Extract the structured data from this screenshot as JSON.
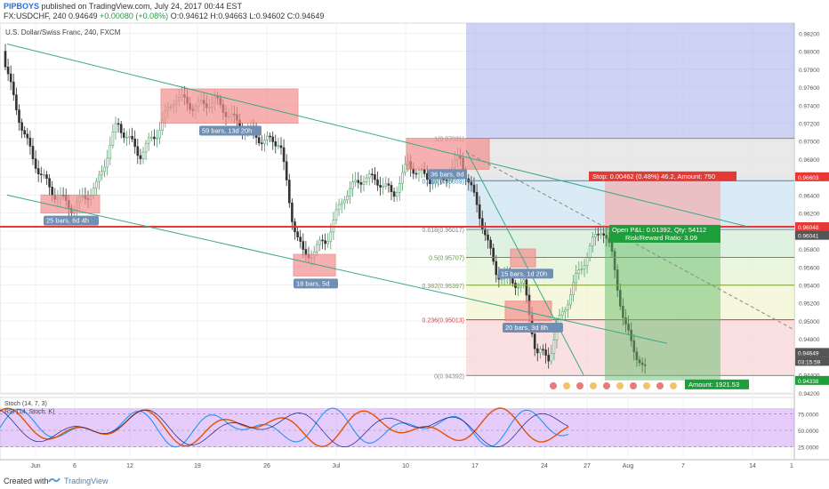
{
  "header": {
    "author": "PIPBOYS",
    "published": "published on TradingView.com, July 24, 2017 00:44 EST",
    "symbol": "FX:USDCHF, 240",
    "last": "0.94649",
    "change": "+0.00080 (+0.08%)",
    "ohlc": "O:0.94612 H:0.94663 L:0.94602 C:0.94649"
  },
  "chart_data": {
    "type": "candlestick",
    "title": "U.S. Dollar/Swiss Franc, 240, FXCM",
    "price_axis": {
      "range": [
        0.942,
        0.983
      ],
      "ticks": [
        "0.98200",
        "0.98000",
        "0.97800",
        "0.97600",
        "0.97400",
        "0.97200",
        "0.97000",
        "0.96800",
        "0.96600",
        "0.96400",
        "0.96200",
        "0.96000",
        "0.95800",
        "0.95600",
        "0.95400",
        "0.95200",
        "0.95000",
        "0.94800",
        "0.94600",
        "0.94400",
        "0.94200"
      ],
      "labels": [
        {
          "text": "0.96603",
          "color": "#e53935"
        },
        {
          "text": "0.96048",
          "color": "#e53935"
        },
        {
          "text": "0.96041",
          "color": "#555555"
        },
        {
          "text": "0.94649",
          "color": "#555555"
        },
        {
          "text": "03:15:59",
          "color": "#555555"
        },
        {
          "text": "0.94338",
          "color": "#1e9e3a"
        }
      ]
    },
    "time_axis": [
      "Jun",
      "6",
      "12",
      "19",
      "26",
      "Jul",
      "10",
      "17",
      "24",
      "27",
      "Aug",
      "7",
      "14",
      "1"
    ],
    "fibonacci": [
      {
        "level": "1(0.97031)",
        "value": 0.97031
      },
      {
        "level": "0.786(0.96559)",
        "value": 0.96559
      },
      {
        "level": "0.618(0.96017)",
        "value": 0.96017
      },
      {
        "level": "0.5(0.95707)",
        "value": 0.95707
      },
      {
        "level": "0.382(0.95397)",
        "value": 0.95397
      },
      {
        "level": "0.236(0.95013)",
        "value": 0.95013
      },
      {
        "level": "0(0.94392)",
        "value": 0.94392
      }
    ],
    "horizontal_line": {
      "value": 0.96048,
      "color": "#e53935"
    },
    "boxes": [
      {
        "label": "25 bars, 6d 4h"
      },
      {
        "label": "59 bars, 13d 20h"
      },
      {
        "label": "18 bars, 5d"
      },
      {
        "label": "36 bars, 8d"
      },
      {
        "label": "15 bars, 1d 20h"
      },
      {
        "label": "20 bars, 3d 8h"
      }
    ],
    "position": {
      "stop_label": "Stop: 0.00462 (0.48%) 46.2, Amount: 750",
      "pl_label": "Open P&L: 0.01392, Qty: 54112",
      "rr_label": "Risk/Reward Ratio: 3.09",
      "target_label": "Amount: 1921.53"
    },
    "oscillators": {
      "stoch_label": "Stoch (14, 7, 3)",
      "rsi_label": "RSI (14, Stoch. K)",
      "ticks": [
        "75.0000",
        "50.0000",
        "25.0000"
      ]
    },
    "colors": {
      "up": "#5a9e6f",
      "down": "#333333",
      "fib_box": "#9ea7e8",
      "stop": "#e53935",
      "target": "#1e9e3a",
      "rsi_fill": "#c58df7"
    }
  },
  "footer": {
    "created": "Created with",
    "brand": "TradingView"
  }
}
